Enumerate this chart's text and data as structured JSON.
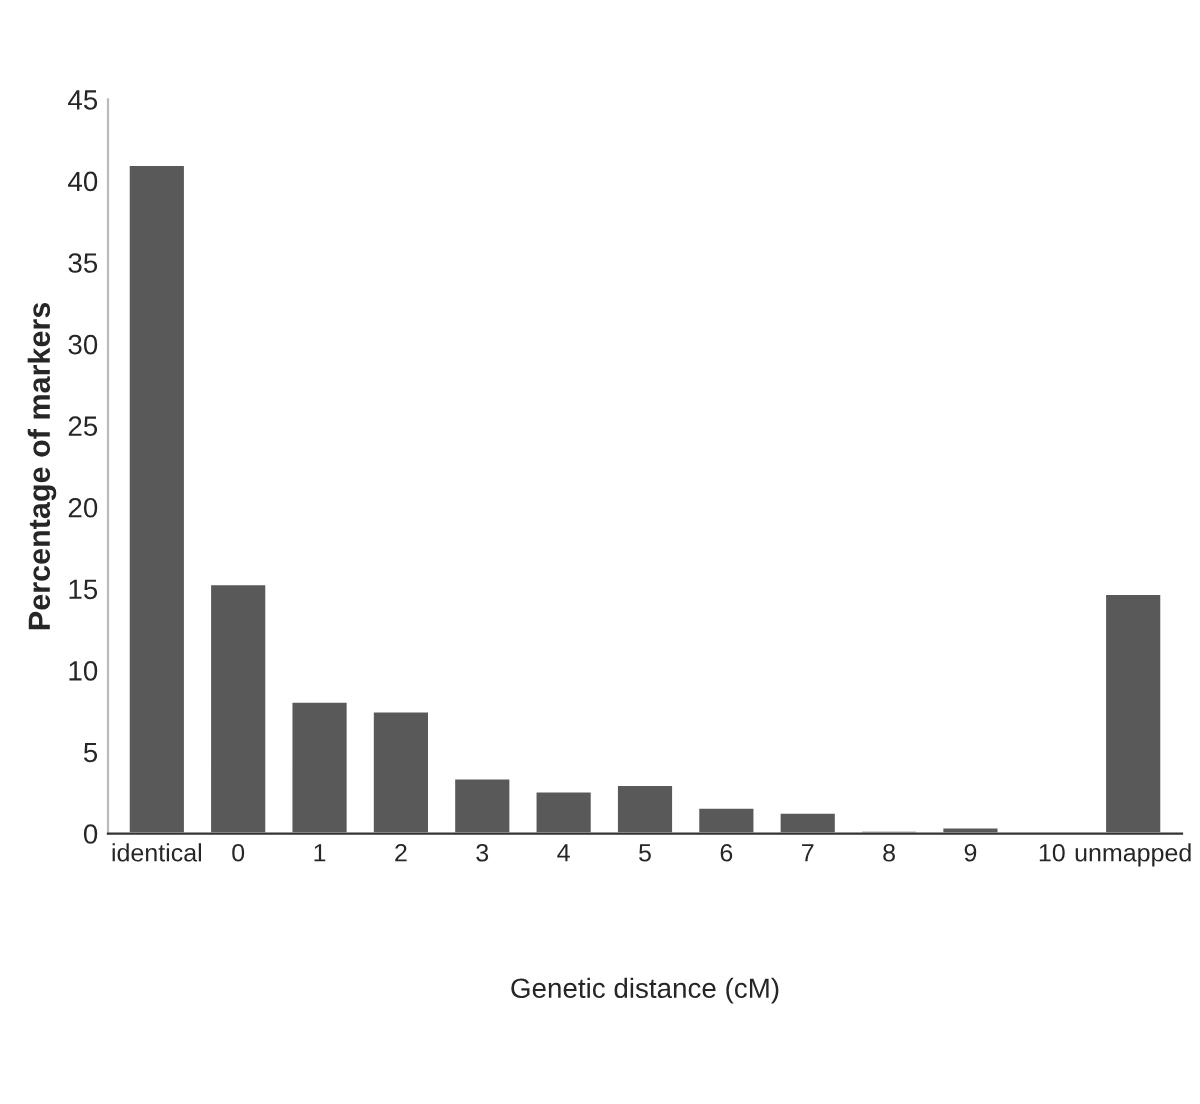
{
  "chart_data": {
    "type": "bar",
    "xlabel": "Genetic distance (cM)",
    "ylabel": "Percentage of markers",
    "categories": [
      "identical",
      "0",
      "1",
      "2",
      "3",
      "4",
      "5",
      "6",
      "7",
      "8",
      "9",
      "10",
      "unmapped"
    ],
    "values": [
      41.0,
      15.3,
      8.1,
      7.5,
      3.4,
      2.6,
      3.0,
      1.6,
      1.3,
      0.2,
      0.4,
      0.1,
      14.7
    ],
    "color": "#595959",
    "ylim": [
      0,
      45
    ],
    "yticks": [
      0,
      5,
      10,
      15,
      20,
      25,
      30,
      35,
      40,
      45
    ],
    "grid": false
  }
}
